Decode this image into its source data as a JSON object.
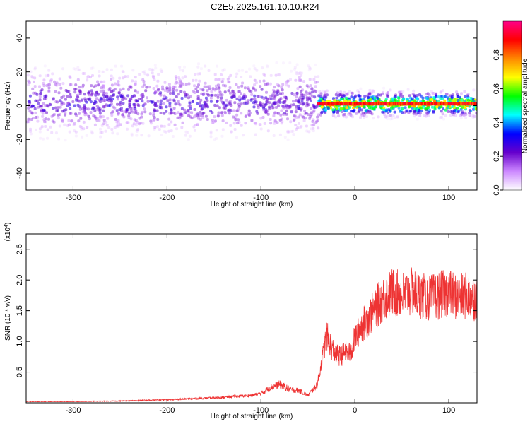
{
  "title": "C2E5.2025.161.10.10.R24",
  "colors": {
    "snr_line": "#ee3333",
    "background": "#ffffff",
    "axis": "#000000"
  },
  "chart_data": [
    {
      "type": "heatmap",
      "title": "C2E5.2025.161.10.10.R24",
      "xlabel": "Height of straight line (km)",
      "ylabel": "Frequency (Hz)",
      "xlim": [
        -350,
        130
      ],
      "ylim": [
        -50,
        50
      ],
      "x_ticks": [
        "-300",
        "-200",
        "-100",
        "0",
        "100"
      ],
      "y_ticks": [
        "-40",
        "-20",
        "0",
        "20",
        "40"
      ],
      "colorbar": {
        "label": "Normalized spectral amplitude",
        "range": [
          0.0,
          1.0
        ],
        "ticks": [
          "0.0",
          "0.2",
          "0.4",
          "0.6",
          "0.8"
        ],
        "colors": [
          "#ffffff",
          "#cc88ff",
          "#6600cc",
          "#0000ff",
          "#00ffff",
          "#00ff00",
          "#ffff00",
          "#ff8800",
          "#ff0000",
          "#ff0088"
        ]
      },
      "bands": [
        {
          "x_range": [
            -350,
            -40
          ],
          "center_hz": 2,
          "width_hz": 12,
          "amplitude": 0.3
        },
        {
          "x_range": [
            -40,
            130
          ],
          "center_hz": 1,
          "width_hz": 4,
          "amplitude": 0.85
        }
      ]
    },
    {
      "type": "line",
      "xlabel": "Height of straight line (km)",
      "ylabel": "SNR (10 * v/v)",
      "y_multiplier": "(x10",
      "y_multiplier_exp": "4",
      "xlim": [
        -350,
        130
      ],
      "ylim": [
        0,
        2.75
      ],
      "x_ticks": [
        "-300",
        "-200",
        "-100",
        "0",
        "100"
      ],
      "y_ticks": [
        "0.5",
        "1.0",
        "1.5",
        "2.0",
        "2.5"
      ],
      "series": [
        {
          "x": [
            -350,
            -300,
            -250,
            -200,
            -150,
            -110,
            -100,
            -90,
            -80,
            -70,
            -60,
            -50,
            -40,
            -35,
            -30,
            -25,
            -20,
            -15,
            -10,
            -5,
            0,
            5,
            10,
            20,
            30,
            40,
            50,
            60,
            70,
            80,
            90,
            100,
            110,
            120,
            130
          ],
          "y": [
            0.02,
            0.02,
            0.03,
            0.05,
            0.08,
            0.12,
            0.15,
            0.25,
            0.3,
            0.22,
            0.2,
            0.12,
            0.3,
            0.7,
            1.1,
            0.9,
            0.8,
            0.75,
            0.85,
            0.8,
            1.05,
            1.2,
            1.3,
            1.5,
            1.7,
            1.8,
            1.75,
            1.8,
            1.75,
            1.7,
            1.75,
            1.8,
            1.7,
            1.75,
            1.7
          ]
        }
      ]
    }
  ]
}
